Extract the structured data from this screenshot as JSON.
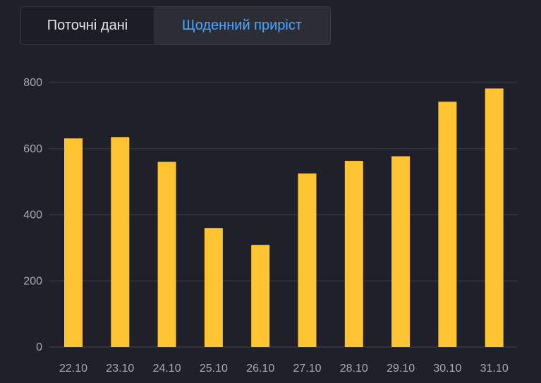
{
  "tabs": {
    "current_label": "Поточні дані",
    "daily_label": "Щоденний приріст",
    "active": "daily"
  },
  "colors": {
    "background": "#1f2029",
    "bar": "#ffc432",
    "grid": "#3a3c46",
    "active_tab_text": "#4aa6ff"
  },
  "chart_data": {
    "type": "bar",
    "categories": [
      "22.10",
      "23.10",
      "24.10",
      "25.10",
      "26.10",
      "27.10",
      "28.10",
      "29.10",
      "30.10",
      "31.10"
    ],
    "values": [
      631,
      635,
      560,
      360,
      309,
      525,
      563,
      577,
      742,
      782
    ],
    "y_ticks": [
      0,
      200,
      400,
      600,
      800
    ],
    "ylim": [
      0,
      800
    ],
    "grid": true,
    "title": "",
    "xlabel": "",
    "ylabel": ""
  }
}
